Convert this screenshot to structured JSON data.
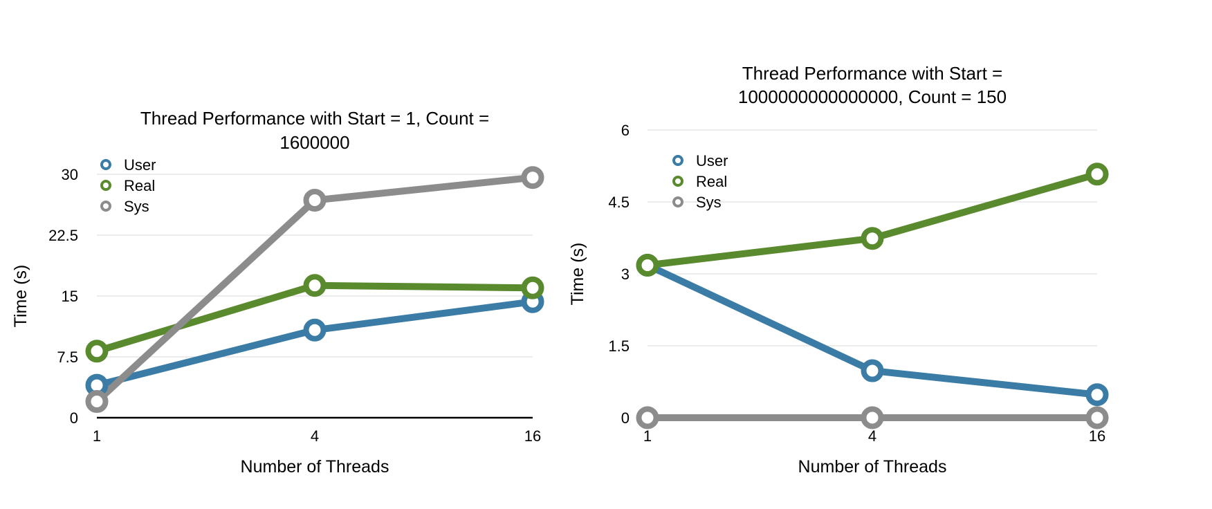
{
  "chart_data": [
    {
      "type": "line",
      "title_lines": [
        "Thread Performance with Start  = 1, Count =",
        "1600000"
      ],
      "xlabel": "Number of Threads",
      "ylabel": "Time (s)",
      "categories": [
        "1",
        "4",
        "16"
      ],
      "yticks": [
        "0",
        "7.5",
        "15",
        "22.5",
        "30"
      ],
      "ylim": [
        0,
        30
      ],
      "grid": true,
      "legend_position": "top-left",
      "series": [
        {
          "name": "User",
          "color": "#3a7ca5",
          "values": [
            4.0,
            10.8,
            14.3
          ]
        },
        {
          "name": "Real",
          "color": "#5a8a2e",
          "values": [
            8.2,
            16.3,
            16.0
          ]
        },
        {
          "name": "Sys",
          "color": "#8c8c8c",
          "values": [
            2.0,
            26.8,
            29.6
          ]
        }
      ]
    },
    {
      "type": "line",
      "title_lines": [
        "Thread Performance with Start =",
        "1000000000000000, Count = 150"
      ],
      "xlabel": "Number of Threads",
      "ylabel": "Time (s)",
      "categories": [
        "1",
        "4",
        "16"
      ],
      "yticks": [
        "0",
        "1.5",
        "3",
        "4.5",
        "6"
      ],
      "ylim": [
        0,
        6
      ],
      "grid": true,
      "legend_position": "top-left",
      "series": [
        {
          "name": "User",
          "color": "#3a7ca5",
          "values": [
            3.18,
            0.98,
            0.48
          ]
        },
        {
          "name": "Real",
          "color": "#5a8a2e",
          "values": [
            3.18,
            3.74,
            5.08
          ]
        },
        {
          "name": "Sys",
          "color": "#8c8c8c",
          "values": [
            0.0,
            0.0,
            0.0
          ]
        }
      ]
    }
  ]
}
